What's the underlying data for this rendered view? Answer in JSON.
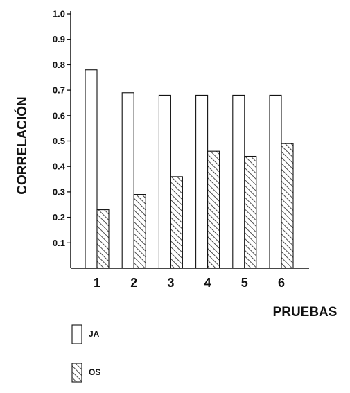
{
  "chart_data": {
    "type": "bar",
    "categories": [
      "1",
      "2",
      "3",
      "4",
      "5",
      "6"
    ],
    "series": [
      {
        "name": "JA",
        "values": [
          0.78,
          0.69,
          0.68,
          0.68,
          0.68,
          0.68
        ],
        "fill": "#ffffff",
        "pattern": "none"
      },
      {
        "name": "OS",
        "values": [
          0.23,
          0.29,
          0.36,
          0.46,
          0.44,
          0.49
        ],
        "fill": "#ffffff",
        "pattern": "diagonal-hatch"
      }
    ],
    "yticks": [
      "0.1",
      "0.2",
      "0.3",
      "0.4",
      "0.5",
      "0.6",
      "0.7",
      "0.8",
      "0.9",
      "1.0"
    ],
    "ylim": [
      0,
      1.0
    ],
    "xlabel": "PRUEBAS",
    "ylabel": "CORRELACIÓN",
    "legend_position": "bottom-left",
    "grid": false,
    "color": "#111111"
  }
}
